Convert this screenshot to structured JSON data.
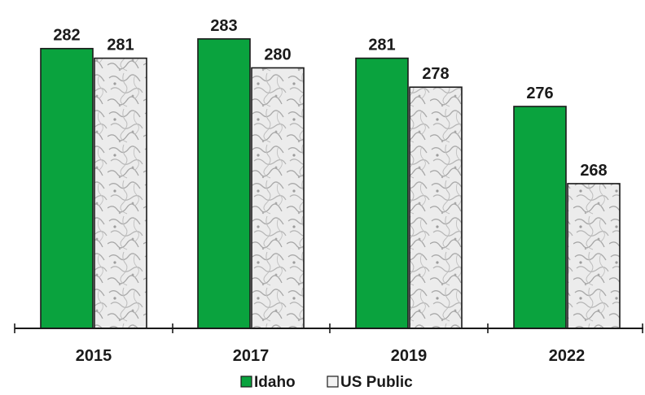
{
  "chart_data": {
    "type": "bar",
    "categories": [
      "2015",
      "2017",
      "2019",
      "2022"
    ],
    "series": [
      {
        "name": "Idaho",
        "values": [
          282,
          283,
          281,
          276
        ],
        "color": "#0aa33e",
        "pattern": "solid"
      },
      {
        "name": "US Public",
        "values": [
          281,
          280,
          278,
          268
        ],
        "color": "#e8e8e8",
        "pattern": "marble"
      }
    ],
    "title": "",
    "xlabel": "",
    "ylabel": "",
    "ylim": [
      253,
      284
    ],
    "grid": false,
    "legend_position": "bottom",
    "data_labels": true,
    "y_axis_visible": false
  }
}
